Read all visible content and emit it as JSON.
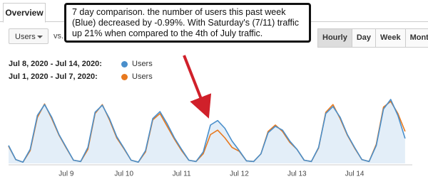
{
  "tabs": [
    "Overview"
  ],
  "metric_selector": "Users",
  "vs_label": "vs.",
  "annotation": "7 day comparison. the number of users this past week (Blue) decreased by -0.99%. With Saturday's (7/11) traffic up 21% when compared to the 4th of July traffic.",
  "time_buttons": [
    "Hourly",
    "Day",
    "Week",
    "Month"
  ],
  "active_button": "Hourly",
  "chart_data": {
    "type": "line",
    "area_under_first": true,
    "ylim": [
      0,
      100
    ],
    "categories": [
      null,
      null,
      null,
      null,
      null,
      null,
      null,
      null,
      "Jul 9",
      null,
      null,
      null,
      null,
      null,
      null,
      null,
      "Jul 10",
      null,
      null,
      null,
      null,
      null,
      null,
      null,
      "Jul 11",
      null,
      null,
      null,
      null,
      null,
      null,
      null,
      "Jul 12",
      null,
      null,
      null,
      null,
      null,
      null,
      null,
      "Jul 13",
      null,
      null,
      null,
      null,
      null,
      null,
      null,
      "Jul 14",
      null,
      null,
      null,
      null,
      null,
      null,
      null
    ],
    "series": [
      {
        "name": "Users",
        "period": "Jul 8, 2020 - Jul 14, 2020:",
        "color": "#4a8fcb",
        "values": [
          28,
          6,
          2,
          22,
          75,
          92,
          72,
          45,
          25,
          5,
          3,
          25,
          80,
          91,
          70,
          42,
          24,
          5,
          2,
          20,
          70,
          81,
          62,
          40,
          22,
          5,
          3,
          18,
          60,
          67,
          55,
          35,
          20,
          4,
          3,
          15,
          48,
          58,
          52,
          35,
          22,
          5,
          3,
          25,
          78,
          89,
          72,
          45,
          25,
          6,
          3,
          28,
          85,
          100,
          75,
          39
        ]
      },
      {
        "name": "Users",
        "period": "Jul 1, 2020 - Jul 7, 2020:",
        "color": "#e8791e",
        "values": [
          27,
          6,
          2,
          20,
          72,
          93,
          70,
          44,
          24,
          5,
          3,
          22,
          78,
          92,
          68,
          40,
          23,
          5,
          2,
          18,
          68,
          78,
          58,
          38,
          20,
          5,
          3,
          15,
          45,
          52,
          40,
          25,
          19,
          4,
          3,
          15,
          50,
          60,
          50,
          33,
          22,
          5,
          3,
          24,
          80,
          92,
          70,
          44,
          24,
          6,
          3,
          30,
          88,
          97,
          78,
          50
        ]
      }
    ]
  }
}
